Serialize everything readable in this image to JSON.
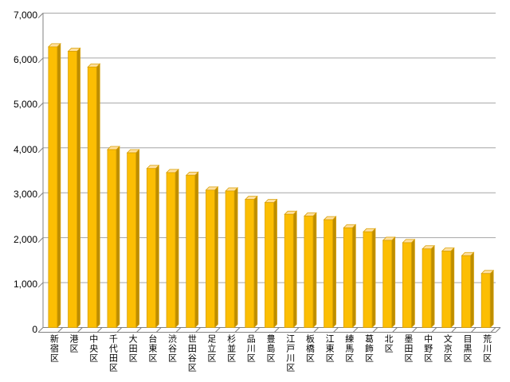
{
  "chart_data": {
    "type": "bar",
    "style": "3d-column",
    "title": "",
    "xlabel": "",
    "ylabel": "",
    "categories": [
      "新宿区",
      "港区",
      "中央区",
      "千代田区",
      "大田区",
      "台東区",
      "渋谷区",
      "世田谷区",
      "足立区",
      "杉並区",
      "品川区",
      "豊島区",
      "江戸川区",
      "板橋区",
      "江東区",
      "練馬区",
      "葛飾区",
      "北区",
      "墨田区",
      "中野区",
      "文京区",
      "目黒区",
      "荒川区"
    ],
    "values": [
      6250,
      6150,
      5800,
      3960,
      3890,
      3540,
      3450,
      3390,
      3060,
      3040,
      2850,
      2780,
      2520,
      2480,
      2400,
      2220,
      2130,
      1940,
      1890,
      1750,
      1700,
      1600,
      1200
    ],
    "ylim": [
      0,
      7000
    ],
    "ytick_interval": 1000,
    "ytick_labels": [
      "0",
      "1,000",
      "2,000",
      "3,000",
      "4,000",
      "5,000",
      "6,000",
      "7,000"
    ],
    "grid": true,
    "legend": false,
    "colors": {
      "bar_face": "#FCBE03",
      "bar_side": "#BD8E00",
      "bar_top": "#FFDF9E",
      "bar_outline": "#D79E00",
      "gridline": "#A6A6A6",
      "axis": "#808080",
      "text": "#000000",
      "background": "#FFFFFF"
    }
  }
}
